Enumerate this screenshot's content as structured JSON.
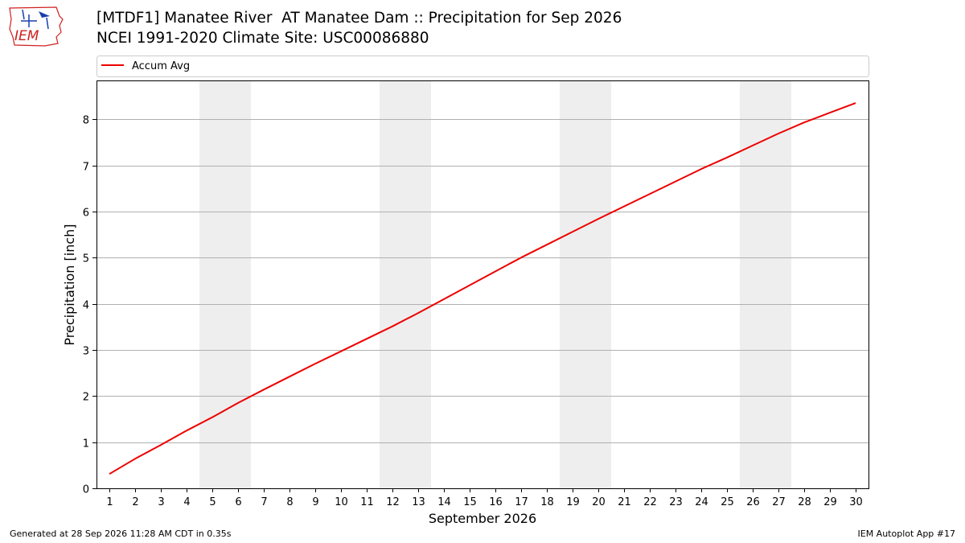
{
  "header": {
    "title_line1": "[MTDF1] Manatee River  AT Manatee Dam :: Precipitation for Sep 2026",
    "title_line2": "NCEI 1991-2020 Climate Site: USC00086880",
    "logo_text": "IEM"
  },
  "footer": {
    "generated": "Generated at 28 Sep 2026 11:28 AM CDT in 0.35s",
    "app": "IEM Autoplot App #17"
  },
  "colors": {
    "line": "#ee0000",
    "weekend_shade": "#eeeeee",
    "grid": "#b0b0b0",
    "logo_blue": "#1a3fae",
    "logo_red": "#d02020"
  },
  "chart_data": {
    "type": "line",
    "title": "[MTDF1] Manatee River  AT Manatee Dam :: Precipitation for Sep 2026",
    "subtitle": "NCEI 1991-2020 Climate Site: USC00086880",
    "xlabel": "September 2026",
    "ylabel": "Precipitation [inch]",
    "x": [
      1,
      2,
      3,
      4,
      5,
      6,
      7,
      8,
      9,
      10,
      11,
      12,
      13,
      14,
      15,
      16,
      17,
      18,
      19,
      20,
      21,
      22,
      23,
      24,
      25,
      26,
      27,
      28,
      29,
      30
    ],
    "xlim": [
      0.5,
      30.5
    ],
    "ylim": [
      0,
      8.84
    ],
    "yticks": [
      0,
      1,
      2,
      3,
      4,
      5,
      6,
      7,
      8
    ],
    "grid": "y-major",
    "legend": "top (above plot)",
    "shaded_x_ranges": [
      [
        4.5,
        6.5
      ],
      [
        11.5,
        13.5
      ],
      [
        18.5,
        20.5
      ],
      [
        25.5,
        27.5
      ]
    ],
    "series": [
      {
        "name": "Accum Avg",
        "values": [
          0.31,
          0.64,
          0.94,
          1.25,
          1.54,
          1.85,
          2.14,
          2.42,
          2.7,
          2.97,
          3.24,
          3.51,
          3.8,
          4.1,
          4.4,
          4.7,
          5.0,
          5.28,
          5.56,
          5.84,
          6.11,
          6.38,
          6.65,
          6.92,
          7.17,
          7.43,
          7.69,
          7.93,
          8.14,
          8.35
        ]
      }
    ]
  }
}
